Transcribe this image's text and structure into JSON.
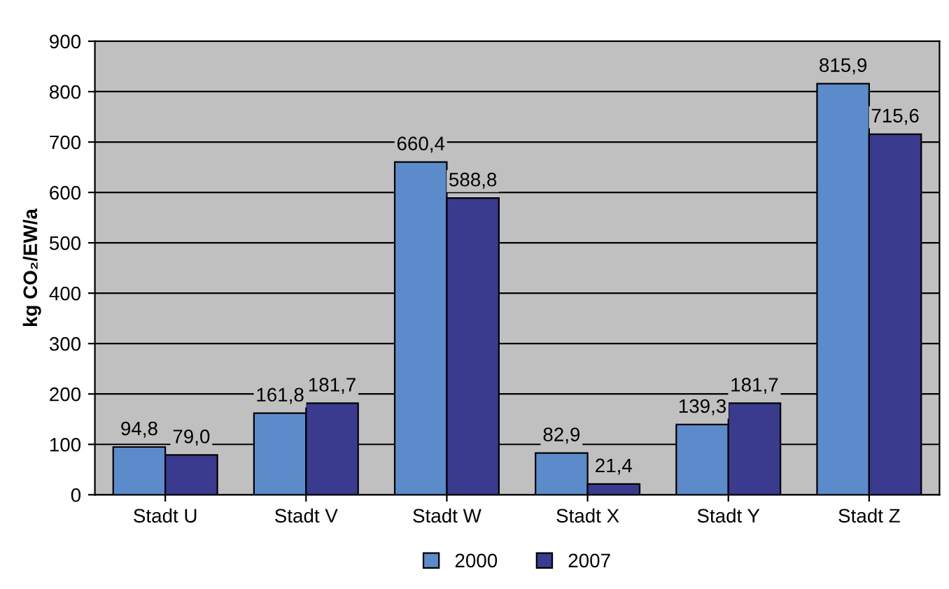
{
  "chart_data": {
    "type": "bar",
    "ylabel": "kg CO₂/EW/a",
    "categories": [
      "Stadt U",
      "Stadt V",
      "Stadt W",
      "Stadt X",
      "Stadt Y",
      "Stadt Z"
    ],
    "series": [
      {
        "name": "2000",
        "color": "#5b8bcb",
        "values": [
          94.8,
          161.8,
          660.4,
          82.9,
          139.3,
          815.9
        ],
        "value_labels": [
          "94,8",
          "161,8",
          "660,4",
          "82,9",
          "139,3",
          "815,9"
        ]
      },
      {
        "name": "2007",
        "color": "#3a3a8f",
        "values": [
          79.0,
          181.7,
          588.8,
          21.4,
          181.7,
          715.6
        ],
        "value_labels": [
          "79,0",
          "181,7",
          "588,8",
          "21,4",
          "181,7",
          "715,6"
        ]
      }
    ],
    "ylim": [
      0,
      900
    ],
    "yticks": [
      0,
      100,
      200,
      300,
      400,
      500,
      600,
      700,
      800,
      900
    ],
    "grid": "y",
    "legend": "bottom"
  }
}
